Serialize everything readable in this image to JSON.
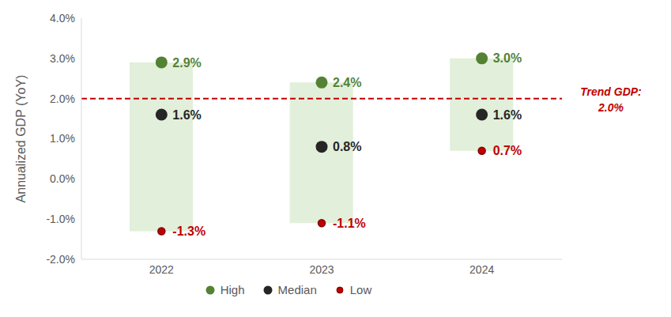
{
  "chart_data": {
    "type": "range",
    "categories": [
      "2022",
      "2023",
      "2024"
    ],
    "series": [
      {
        "name": "High",
        "color": "#548235",
        "marker": "circle",
        "values": [
          2.9,
          2.4,
          3.0
        ],
        "value_labels": [
          "2.9%",
          "2.4%",
          "3.0%"
        ]
      },
      {
        "name": "Median",
        "color": "#262626",
        "marker": "circle",
        "values": [
          1.6,
          0.8,
          1.6
        ],
        "value_labels": [
          "1.6%",
          "0.8%",
          "1.6%"
        ]
      },
      {
        "name": "Low",
        "color": "#c00000",
        "marker": "circle",
        "values": [
          -1.3,
          -1.1,
          0.7
        ],
        "value_labels": [
          "-1.3%",
          "-1.1%",
          "0.7%"
        ]
      }
    ],
    "y_label": "Annualized GDP (YoY)",
    "ylim": [
      -2,
      4
    ],
    "yticks": [
      {
        "value": -2,
        "label": "-2.0%"
      },
      {
        "value": -1,
        "label": "-1.0%"
      },
      {
        "value": 0,
        "label": "0.0%"
      },
      {
        "value": 1,
        "label": "1.0%"
      },
      {
        "value": 2,
        "label": "2.0%"
      },
      {
        "value": 3,
        "label": "3.0%"
      },
      {
        "value": 4,
        "label": "4.0%"
      }
    ],
    "reference_line": {
      "label": "Trend GDP: 2.0%",
      "value": 2.0,
      "color": "#c00000",
      "line_style": "dashed"
    },
    "legend": "bottom",
    "data_labels": true,
    "grid": false
  }
}
